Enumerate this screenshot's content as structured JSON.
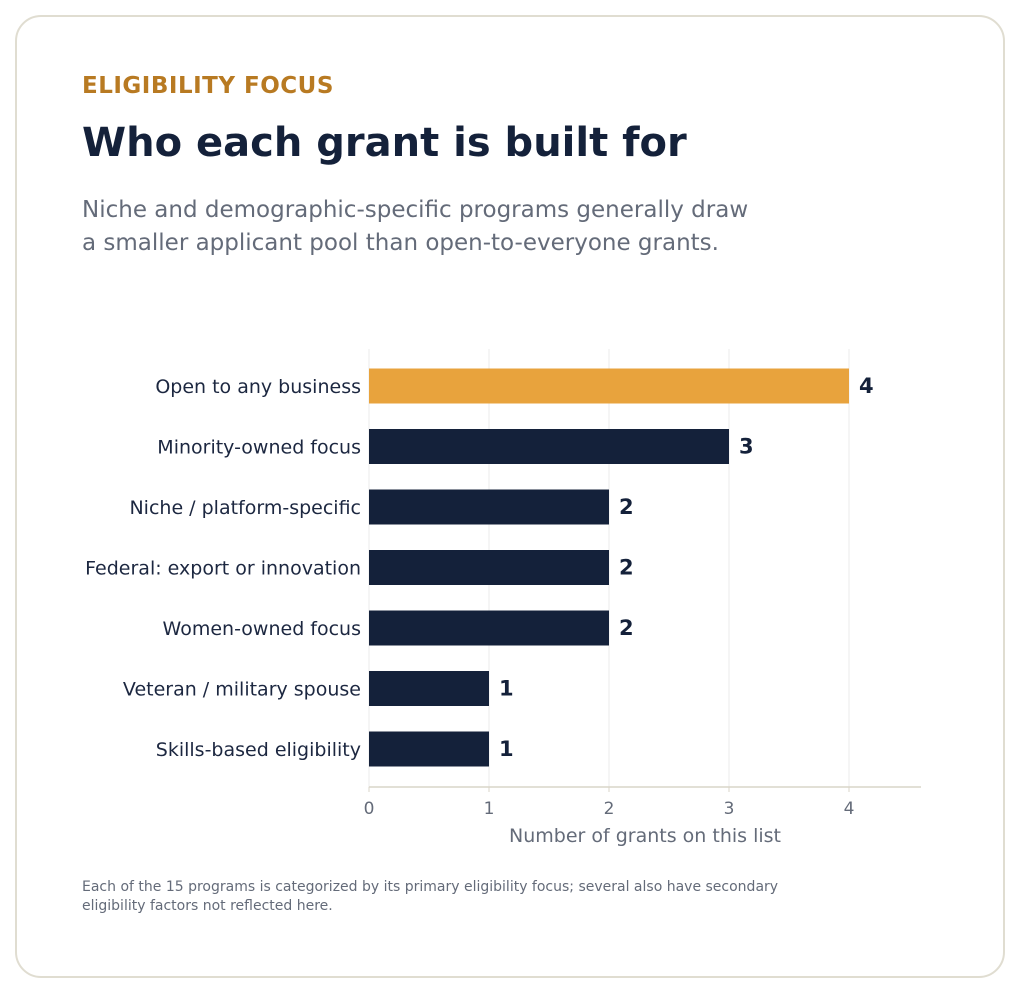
{
  "header": {
    "eyebrow": "ELIGIBILITY FOCUS",
    "title": "Who each grant is built for",
    "subtitle": "Niche and demographic-specific programs generally draw a smaller applicant pool than open-to-everyone grants."
  },
  "footnote": "Each of the 15 programs is categorized by its primary eligibility focus; several also have secondary eligibility factors not reflected here.",
  "colors": {
    "highlight": "#e8a33d",
    "bar": "#14213a",
    "label_text": "#1c2740",
    "value_text": "#14213a",
    "axis_text": "#646b79",
    "gridline": "#ebebeb",
    "axis_line": "#d9d5c8"
  },
  "chart_data": {
    "type": "bar",
    "orientation": "horizontal",
    "categories": [
      "Open to any business",
      "Minority-owned focus",
      "Niche / platform-specific",
      "Federal: export or innovation",
      "Women-owned focus",
      "Veteran / military spouse",
      "Skills-based eligibility"
    ],
    "values": [
      4,
      3,
      2,
      2,
      2,
      1,
      1
    ],
    "highlight_index": 0,
    "xlabel": "Number of grants on this list",
    "ylabel": "",
    "xlim": [
      0,
      4.6
    ],
    "xticks": [
      0,
      1,
      2,
      3,
      4
    ],
    "grid": "vertical",
    "data_labels": true
  }
}
